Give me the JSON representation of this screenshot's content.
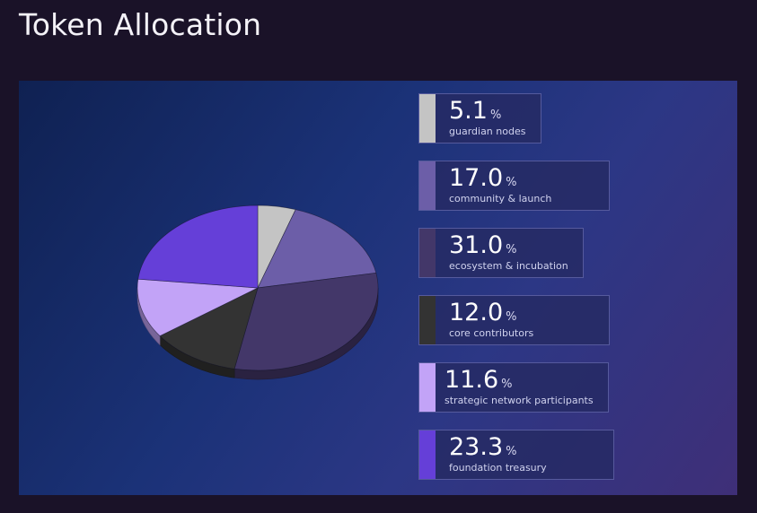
{
  "page": {
    "title": "Token Allocation"
  },
  "chart_data": {
    "type": "pie",
    "title": "Token Allocation",
    "unit": "%",
    "series": [
      {
        "name": "guardian nodes",
        "value": 5.1,
        "display": "5.1",
        "color": "#c4c4c4"
      },
      {
        "name": "community & launch",
        "value": 17.0,
        "display": "17.0",
        "color": "#6c5ea8"
      },
      {
        "name": "ecosystem & incubation",
        "value": 31.0,
        "display": "31.0",
        "color": "#433769"
      },
      {
        "name": "core contributors",
        "value": 12.0,
        "display": "12.0",
        "color": "#333333"
      },
      {
        "name": "strategic network participants",
        "value": 11.6,
        "display": "11.6",
        "color": "#c2a3f7"
      },
      {
        "name": "foundation treasury",
        "value": 23.3,
        "display": "23.3",
        "color": "#653fd8"
      }
    ],
    "legend_position": "right"
  }
}
